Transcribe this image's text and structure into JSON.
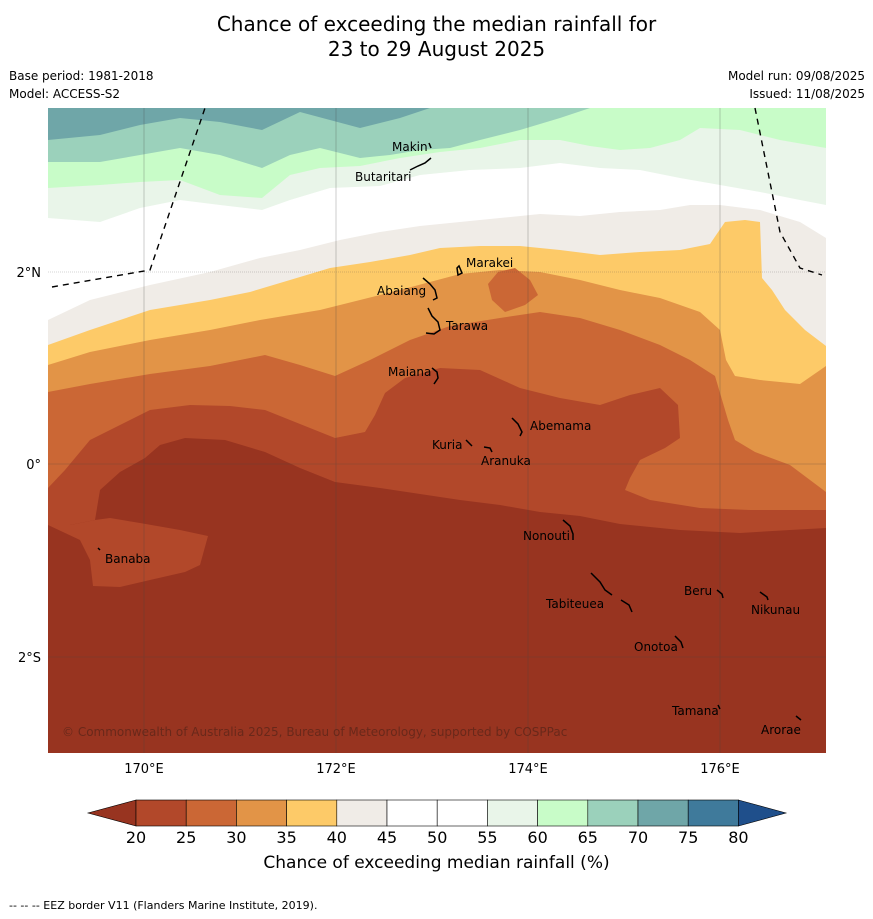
{
  "title_line1": "Chance of exceeding the median rainfall for",
  "title_line2": "23 to 29 August 2025",
  "left_meta": [
    "Base period: 1981-2018",
    "Model: ACCESS-S2"
  ],
  "right_meta": [
    "Model run: 09/08/2025",
    "Issued: 11/08/2025"
  ],
  "axes": {
    "x_ticks": [
      "170°E",
      "172°E",
      "174°E",
      "176°E"
    ],
    "y_ticks": [
      "2°N",
      "0°",
      "2°S"
    ]
  },
  "copyright": "© Commonwealth of Australia 2025, Bureau of Meteorology, supported by COSPPac",
  "islands": [
    "Makin",
    "Butaritari",
    "Marakei",
    "Abaiang",
    "Tarawa",
    "Maiana",
    "Abemama",
    "Kuria",
    "Aranuka",
    "Nonouti",
    "Banaba",
    "Beru",
    "Tabiteuea",
    "Nikunau",
    "Onotoa",
    "Tamana",
    "Arorae"
  ],
  "colorbar": {
    "title": "Chance of exceeding median rainfall (%)",
    "ticks": [
      "20",
      "25",
      "30",
      "35",
      "40",
      "45",
      "50",
      "55",
      "60",
      "65",
      "70",
      "75",
      "80"
    ],
    "colors": [
      "#983420",
      "#b2482a",
      "#cb6735",
      "#e29447",
      "#fdca68",
      "#f0ece7",
      "#ffffff",
      "#ffffff",
      "#e9f5e9",
      "#c8fcc8",
      "#9bd1bb",
      "#6fa6a8",
      "#3f7a9b",
      "#1f4f8b"
    ]
  },
  "footnote": "--  --  -- EEZ border V11 (Flanders Marine Institute, 2019)."
}
